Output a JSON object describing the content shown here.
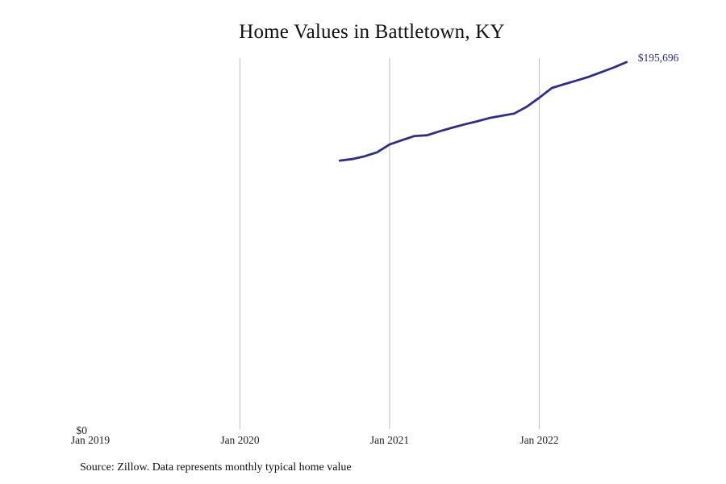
{
  "chart_data": {
    "type": "line",
    "title": "Home Values in Battletown, KY",
    "xlabel": "",
    "ylabel": "",
    "x_range": [
      "2019-01",
      "2022-12"
    ],
    "ylim": [
      0,
      195696
    ],
    "grid": "vertical",
    "y_ticks": [
      {
        "value": 0,
        "label": "$0"
      }
    ],
    "x_ticks": [
      {
        "date": "2019-01",
        "label": "Jan 2019"
      },
      {
        "date": "2020-01",
        "label": "Jan 2020"
      },
      {
        "date": "2021-01",
        "label": "Jan 2021"
      },
      {
        "date": "2022-01",
        "label": "Jan 2022"
      }
    ],
    "series": [
      {
        "color": "#2e2d8a",
        "end_label": "$195,696",
        "x": [
          "2020-09",
          "2020-10",
          "2020-11",
          "2020-12",
          "2021-01",
          "2021-02",
          "2021-03",
          "2021-04",
          "2021-05",
          "2021-06",
          "2021-07",
          "2021-08",
          "2021-09",
          "2021-10",
          "2021-11",
          "2021-12",
          "2022-01",
          "2022-02",
          "2022-03",
          "2022-04",
          "2022-05",
          "2022-06",
          "2022-07",
          "2022-08"
        ],
        "values": [
          143200,
          144000,
          145500,
          147600,
          151800,
          154100,
          156300,
          156700,
          158800,
          160700,
          162500,
          164100,
          165900,
          167100,
          168300,
          171900,
          176700,
          181900,
          183900,
          185900,
          187900,
          190400,
          192900,
          195696
        ]
      }
    ]
  },
  "footer": {
    "source": "Source: Zillow. Data represents monthly typical home value"
  }
}
